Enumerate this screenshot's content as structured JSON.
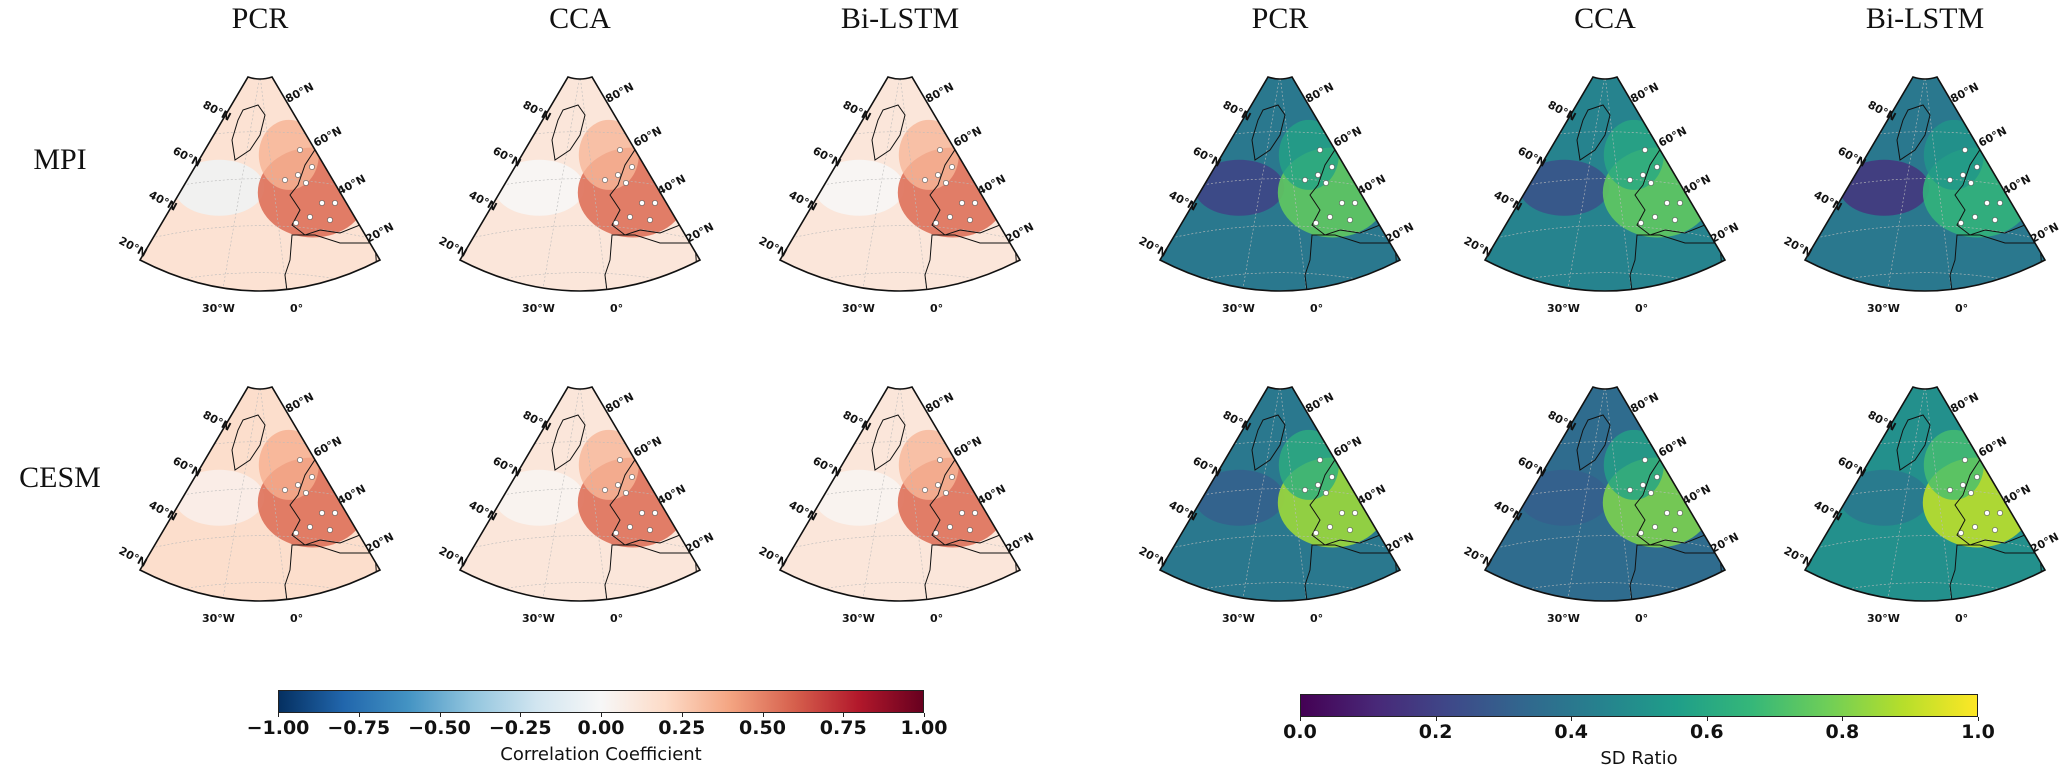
{
  "chart_data": {
    "type": "heatmap",
    "title": "",
    "row_labels": [
      "MPI",
      "CESM"
    ],
    "groups": [
      {
        "metric": "Correlation Coefficient",
        "column_titles": [
          "PCR",
          "CCA",
          "Bi-LSTM"
        ],
        "colormap": "RdBu_r",
        "range": [
          -1.0,
          1.0
        ],
        "colorbar_ticks": [
          "−1.00",
          "−0.75",
          "−0.50",
          "−0.25",
          "0.00",
          "0.25",
          "0.50",
          "0.75",
          "1.00"
        ],
        "colorbar_label": "Correlation Coefficient",
        "colors": [
          "#053061",
          "#2166ac",
          "#4393c3",
          "#92c5de",
          "#d1e5f0",
          "#f7f7f7",
          "#fddbc7",
          "#f4a582",
          "#d6604d",
          "#b2182b",
          "#67001f"
        ],
        "panels": [
          {
            "row": "MPI",
            "col": "PCR",
            "europe_value": 0.55,
            "ocean_value": 0.15,
            "mid_atlantic_value": -0.05
          },
          {
            "row": "MPI",
            "col": "CCA",
            "europe_value": 0.55,
            "ocean_value": 0.12,
            "mid_atlantic_value": 0.0
          },
          {
            "row": "MPI",
            "col": "Bi-LSTM",
            "europe_value": 0.55,
            "ocean_value": 0.12,
            "mid_atlantic_value": 0.0
          },
          {
            "row": "CESM",
            "col": "PCR",
            "europe_value": 0.55,
            "ocean_value": 0.18,
            "mid_atlantic_value": 0.05
          },
          {
            "row": "CESM",
            "col": "CCA",
            "europe_value": 0.55,
            "ocean_value": 0.12,
            "mid_atlantic_value": 0.02
          },
          {
            "row": "CESM",
            "col": "Bi-LSTM",
            "europe_value": 0.55,
            "ocean_value": 0.12,
            "mid_atlantic_value": 0.02
          }
        ]
      },
      {
        "metric": "SD Ratio",
        "column_titles": [
          "PCR",
          "CCA",
          "Bi-LSTM"
        ],
        "colormap": "viridis",
        "range": [
          0.0,
          1.0
        ],
        "colorbar_ticks": [
          "0.0",
          "0.2",
          "0.4",
          "0.6",
          "0.8",
          "1.0"
        ],
        "colorbar_label": "SD Ratio",
        "colors": [
          "#440154",
          "#482878",
          "#3e4989",
          "#31688e",
          "#26828e",
          "#1f9e89",
          "#35b779",
          "#6ece58",
          "#b5de2b",
          "#fde725"
        ],
        "panels": [
          {
            "row": "MPI",
            "col": "PCR",
            "europe_value": 0.75,
            "ocean_value": 0.4,
            "mid_atlantic_value": 0.2
          },
          {
            "row": "MPI",
            "col": "CCA",
            "europe_value": 0.75,
            "ocean_value": 0.45,
            "mid_atlantic_value": 0.25
          },
          {
            "row": "MPI",
            "col": "Bi-LSTM",
            "europe_value": 0.65,
            "ocean_value": 0.4,
            "mid_atlantic_value": 0.15
          },
          {
            "row": "CESM",
            "col": "PCR",
            "europe_value": 0.85,
            "ocean_value": 0.4,
            "mid_atlantic_value": 0.3
          },
          {
            "row": "CESM",
            "col": "CCA",
            "europe_value": 0.8,
            "ocean_value": 0.35,
            "mid_atlantic_value": 0.3
          },
          {
            "row": "CESM",
            "col": "Bi-LSTM",
            "europe_value": 0.9,
            "ocean_value": 0.5,
            "mid_atlantic_value": 0.4
          }
        ]
      }
    ],
    "map_tick_labels": {
      "lat_left": [
        "80°N",
        "60°N",
        "40°N",
        "20°N"
      ],
      "lat_right": [
        "80°N",
        "60°N",
        "40°N",
        "20°N"
      ],
      "lon_bottom": [
        "30°W",
        "0°"
      ]
    }
  }
}
